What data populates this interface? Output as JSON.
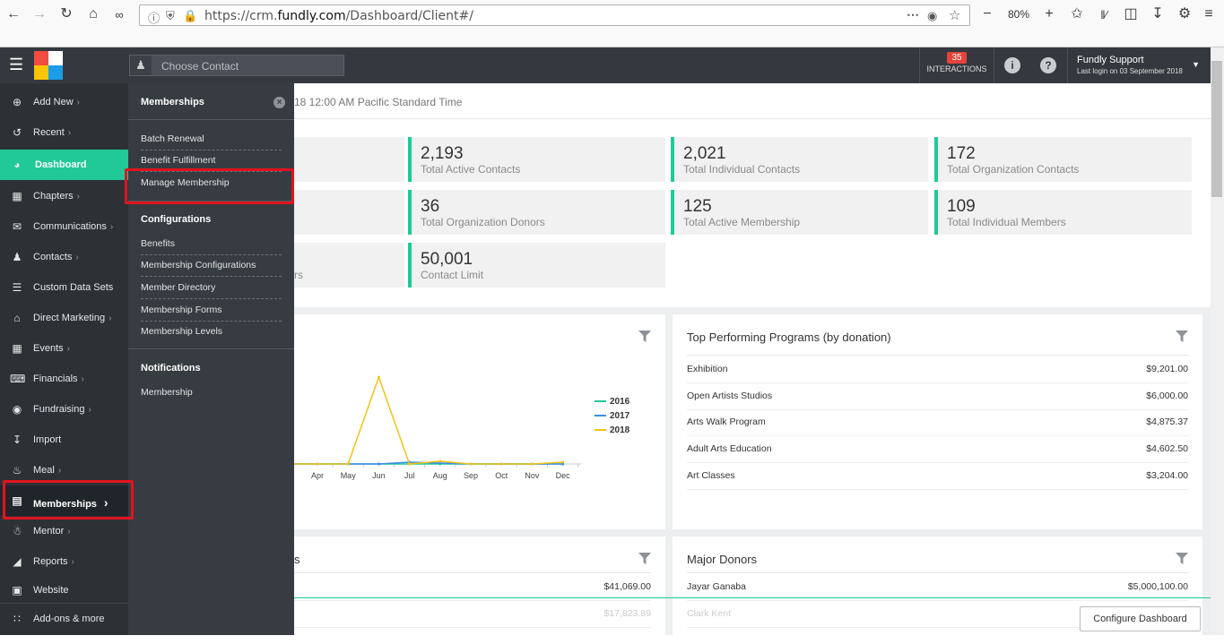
{
  "browser": {
    "url_prefix": "https://crm.",
    "url_domain": "fundly.com",
    "url_path": "/Dashboard/Client#/",
    "zoom": "80%"
  },
  "topbar": {
    "search_placeholder": "Choose Contact",
    "interactions_count": "35",
    "interactions_label": "INTERACTIONS",
    "user_name": "Fundly Support",
    "last_login": "Last login on 03 September 2018"
  },
  "sidebar": {
    "items": [
      {
        "label": "Add New",
        "icon": "plus-circle-icon"
      },
      {
        "label": "Recent",
        "icon": "history-icon"
      },
      {
        "label": "Dashboard",
        "icon": "dashboard-icon"
      },
      {
        "label": "Chapters",
        "icon": "grid-icon"
      },
      {
        "label": "Communications",
        "icon": "envelope-icon"
      },
      {
        "label": "Contacts",
        "icon": "user-icon"
      },
      {
        "label": "Custom Data Sets",
        "icon": "database-icon"
      },
      {
        "label": "Direct Marketing",
        "icon": "bank-icon"
      },
      {
        "label": "Events",
        "icon": "calendar-icon"
      },
      {
        "label": "Financials",
        "icon": "money-icon"
      },
      {
        "label": "Fundraising",
        "icon": "moneybag-icon"
      },
      {
        "label": "Import",
        "icon": "import-icon"
      },
      {
        "label": "Meal",
        "icon": "cutlery-icon"
      },
      {
        "label": "Memberships",
        "icon": "id-card-icon"
      },
      {
        "label": "Mentor",
        "icon": "mentor-icon"
      },
      {
        "label": "Reports",
        "icon": "chart-icon"
      },
      {
        "label": "Website",
        "icon": "monitor-icon"
      },
      {
        "label": "Add-ons & more",
        "icon": "apps-icon"
      }
    ]
  },
  "flyout": {
    "title": "Memberships",
    "links1": [
      "Batch Renewal",
      "Benefit Fulfillment",
      "Manage Membership"
    ],
    "config_title": "Configurations",
    "links2": [
      "Benefits",
      "Membership Configurations",
      "Member Directory",
      "Membership Forms",
      "Membership Levels"
    ],
    "notif_title": "Notifications",
    "links3": [
      "Membership"
    ]
  },
  "main": {
    "timezone_text": "18 12:00 AM Pacific Standard Time",
    "stats": [
      {
        "num": "2,193",
        "label": "Total Active Contacts"
      },
      {
        "num": "2,021",
        "label": "Total Individual Contacts"
      },
      {
        "num": "172",
        "label": "Total Organization Contacts"
      },
      {
        "num": "36",
        "label": "Total Organization Donors"
      },
      {
        "num": "125",
        "label": "Total Active Membership"
      },
      {
        "num": "109",
        "label": "Total Individual Members"
      },
      {
        "num": "50,001",
        "label": "Contact Limit"
      }
    ],
    "partial_label_row3": "rs",
    "partial_title_bottom_left": "s",
    "bottom_left_values": [
      "$41,069.00",
      "$17,823.89"
    ],
    "top_programs": {
      "title": "Top Performing Programs (by donation)",
      "rows": [
        {
          "name": "Exhibition",
          "value": "$9,201.00"
        },
        {
          "name": "Open Artists Studios",
          "value": "$6,000.00"
        },
        {
          "name": "Arts Walk Program",
          "value": "$4,875.37"
        },
        {
          "name": "Adult Arts Education",
          "value": "$4,602.50"
        },
        {
          "name": "Art Classes",
          "value": "$3,204.00"
        }
      ]
    },
    "major_donors": {
      "title": "Major Donors",
      "rows": [
        {
          "name": "Jayar Ganaba",
          "value": "$5,000,100.00"
        },
        {
          "name": "Clark Kent",
          "value": ""
        }
      ]
    },
    "configure_label": "Configure Dashboard"
  },
  "chart_data": {
    "type": "line",
    "categories": [
      "Apr",
      "May",
      "Jun",
      "Jul",
      "Aug",
      "Sep",
      "Oct",
      "Nov",
      "Dec"
    ],
    "series": [
      {
        "name": "2016",
        "color": "#20c997",
        "values": [
          0,
          0,
          0,
          0,
          0,
          0,
          0,
          0,
          0
        ]
      },
      {
        "name": "2017",
        "color": "#3b8be6",
        "values": [
          0,
          0,
          0,
          200,
          100,
          0,
          0,
          0,
          0
        ]
      },
      {
        "name": "2018",
        "color": "#f2c315",
        "values": [
          0,
          0,
          9500,
          0,
          300,
          0,
          0,
          0,
          200
        ]
      }
    ],
    "ylim": [
      0,
      10000
    ],
    "legend": "right"
  }
}
